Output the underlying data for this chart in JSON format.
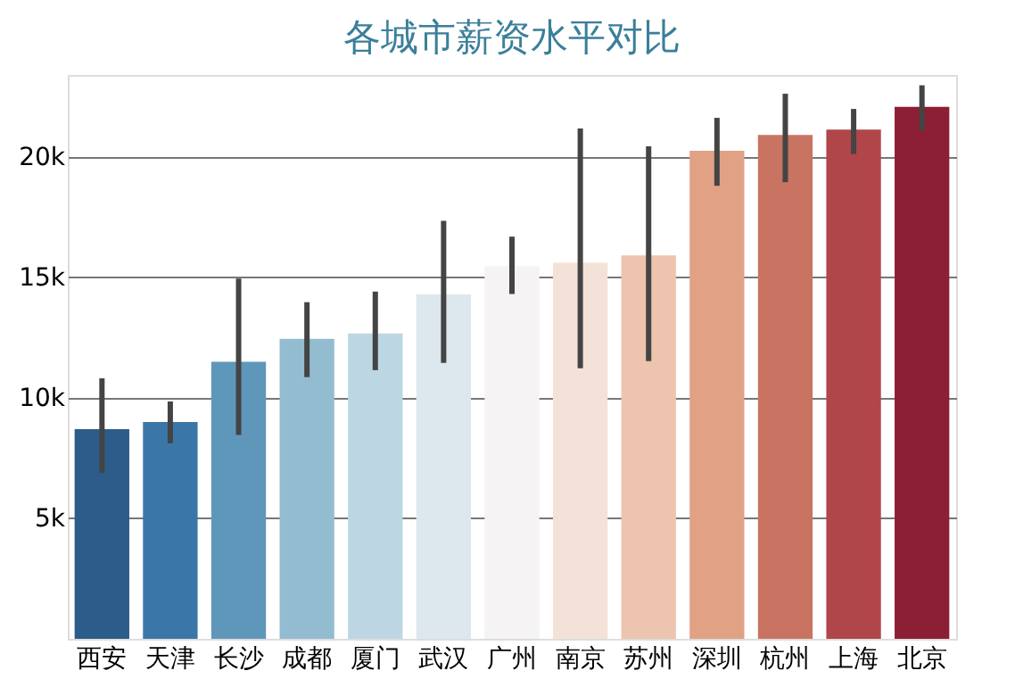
{
  "chart_data": {
    "type": "bar",
    "title": "各城市薪资水平对比",
    "categories": [
      "西安",
      "天津",
      "长沙",
      "成都",
      "厦门",
      "武汉",
      "广州",
      "南京",
      "苏州",
      "深圳",
      "杭州",
      "上海",
      "北京"
    ],
    "values": [
      8700,
      9000,
      11500,
      12450,
      12670,
      14290,
      15470,
      15610,
      15910,
      20250,
      20910,
      21130,
      22080
    ],
    "errors": [
      [
        6890,
        10810
      ],
      [
        8110,
        9850
      ],
      [
        8460,
        14950
      ],
      [
        10860,
        13970
      ],
      [
        11150,
        14410
      ],
      [
        11450,
        17350
      ],
      [
        14310,
        16690
      ],
      [
        11230,
        21180
      ],
      [
        11520,
        20440
      ],
      [
        18800,
        21620
      ],
      [
        18950,
        22620
      ],
      [
        20120,
        21990
      ],
      [
        21080,
        22970
      ]
    ],
    "colors": [
      "#2b5c8a",
      "#3a77a8",
      "#5f97ba",
      "#94bcd0",
      "#bcd6e4",
      "#dde8ee",
      "#f5f3f3",
      "#f4e2d8",
      "#edc4ad",
      "#e1a185",
      "#c97462",
      "#b0464a",
      "#8c1f33"
    ],
    "ylim": [
      0,
      23400
    ],
    "yticks": [
      {
        "value": 5000,
        "label": "5k"
      },
      {
        "value": 10000,
        "label": "10k"
      },
      {
        "value": 15000,
        "label": "15k"
      },
      {
        "value": 20000,
        "label": "20k"
      }
    ],
    "grid": "y",
    "legend": false
  }
}
